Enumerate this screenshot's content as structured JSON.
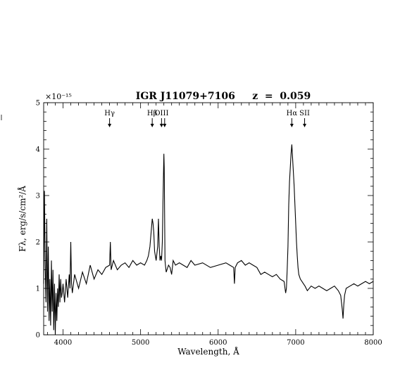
{
  "chart_data": {
    "type": "line",
    "title": "IGR J11079+7106     z  =  0.059",
    "xlabel": "Wavelength, Å",
    "ylabel": "Fλ, erg/s/cm²/Å",
    "y_multiplier": "×10⁻¹⁵",
    "xlim": [
      3750,
      8000
    ],
    "ylim": [
      0,
      5
    ],
    "x_ticks": [
      "4000",
      "5000",
      "6000",
      "7000",
      "8000"
    ],
    "y_ticks": [
      "0",
      "1",
      "2",
      "3",
      "4",
      "5"
    ],
    "grid": false,
    "line_markers": [
      {
        "label": "Hγ",
        "x": 4600
      },
      {
        "label": "Hβ",
        "x": 5150
      },
      {
        "label": "OIII",
        "x": 5270
      },
      {
        "label": "Hα",
        "x": 6950
      },
      {
        "label": "SII",
        "x": 7115
      }
    ],
    "oiii_extra_arrow_x": 5310,
    "series": [
      {
        "x": [
          3750,
          3760,
          3770,
          3780,
          3790,
          3800,
          3810,
          3820,
          3830,
          3840,
          3850,
          3860,
          3870,
          3880,
          3890,
          3900,
          3910,
          3920,
          3930,
          3940,
          3950,
          3960,
          3970,
          3980,
          3990,
          4000,
          4020,
          4040,
          4060,
          4080,
          4090,
          4100,
          4110,
          4120,
          4150,
          4200,
          4250,
          4300,
          4350,
          4400,
          4450,
          4500,
          4550,
          4600,
          4610,
          4620,
          4650,
          4700,
          4750,
          4800,
          4850,
          4900,
          4950,
          5000,
          5050,
          5080,
          5100,
          5120,
          5140,
          5150,
          5160,
          5170,
          5180,
          5200,
          5220,
          5230,
          5240,
          5250,
          5260,
          5270,
          5280,
          5290,
          5300,
          5305,
          5310,
          5315,
          5320,
          5330,
          5340,
          5360,
          5380,
          5400,
          5420,
          5450,
          5500,
          5550,
          5600,
          5650,
          5700,
          5800,
          5900,
          6000,
          6100,
          6150,
          6200,
          6210,
          6220,
          6250,
          6300,
          6350,
          6400,
          6450,
          6500,
          6550,
          6600,
          6650,
          6700,
          6750,
          6800,
          6850,
          6870,
          6880,
          6890,
          6900,
          6910,
          6920,
          6930,
          6940,
          6950,
          6960,
          6970,
          6980,
          6990,
          7000,
          7010,
          7020,
          7030,
          7040,
          7060,
          7080,
          7100,
          7120,
          7150,
          7200,
          7250,
          7300,
          7350,
          7400,
          7450,
          7500,
          7550,
          7580,
          7600,
          7610,
          7620,
          7630,
          7650,
          7700,
          7750,
          7800,
          7850,
          7900,
          7950,
          8000
        ],
        "y": [
          1.1,
          3.1,
          1.5,
          0.7,
          2.5,
          0.5,
          1.9,
          0.3,
          1.2,
          0.2,
          1.6,
          0.5,
          1.4,
          0.1,
          1.1,
          0.0,
          0.9,
          0.3,
          1.0,
          0.6,
          1.3,
          0.7,
          1.2,
          0.8,
          0.9,
          1.1,
          0.7,
          1.2,
          0.8,
          1.3,
          1.0,
          2.0,
          1.1,
          0.9,
          1.3,
          1.0,
          1.35,
          1.1,
          1.5,
          1.2,
          1.4,
          1.3,
          1.45,
          1.5,
          2.0,
          1.4,
          1.6,
          1.4,
          1.5,
          1.55,
          1.45,
          1.6,
          1.5,
          1.55,
          1.5,
          1.6,
          1.7,
          1.9,
          2.3,
          2.5,
          2.4,
          2.2,
          1.8,
          1.6,
          1.9,
          2.5,
          1.9,
          1.6,
          1.7,
          1.6,
          2.0,
          3.0,
          3.9,
          3.6,
          2.5,
          1.6,
          1.5,
          1.35,
          1.4,
          1.5,
          1.45,
          1.3,
          1.6,
          1.5,
          1.55,
          1.5,
          1.45,
          1.6,
          1.5,
          1.55,
          1.45,
          1.5,
          1.55,
          1.5,
          1.45,
          1.1,
          1.45,
          1.55,
          1.6,
          1.5,
          1.55,
          1.5,
          1.45,
          1.3,
          1.35,
          1.3,
          1.25,
          1.3,
          1.2,
          1.15,
          0.9,
          1.0,
          1.4,
          1.9,
          2.8,
          3.3,
          3.6,
          3.9,
          4.1,
          3.8,
          3.5,
          3.2,
          2.8,
          2.4,
          2.0,
          1.7,
          1.45,
          1.3,
          1.2,
          1.15,
          1.1,
          1.05,
          0.95,
          1.05,
          1.0,
          1.05,
          1.0,
          0.95,
          1.0,
          1.05,
          0.95,
          0.85,
          0.55,
          0.35,
          0.65,
          0.85,
          1.0,
          1.05,
          1.1,
          1.05,
          1.1,
          1.15,
          1.1,
          1.15
        ]
      }
    ]
  }
}
